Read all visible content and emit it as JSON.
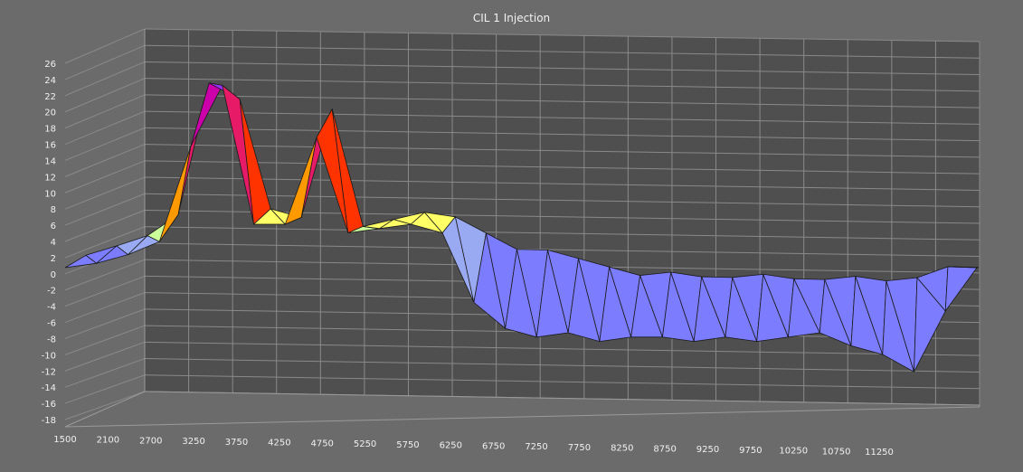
{
  "chart_data": {
    "type": "surface3d",
    "title": "CIL 1 Injection",
    "xlabel": "",
    "ylabel": "",
    "zlabel": "",
    "xlim": [
      1500,
      11250
    ],
    "ylim": [
      -18,
      26
    ],
    "x_ticks": [
      "1500",
      "2100",
      "2700",
      "3250",
      "3750",
      "4250",
      "4750",
      "5250",
      "5750",
      "6250",
      "6750",
      "7250",
      "7750",
      "8250",
      "8750",
      "9250",
      "9750",
      "10250",
      "10750",
      "11250"
    ],
    "y_ticks": [
      "26",
      "24",
      "22",
      "20",
      "18",
      "16",
      "14",
      "12",
      "10",
      "8",
      "6",
      "4",
      "2",
      "0",
      "-2",
      "-4",
      "-6",
      "-8",
      "-10",
      "-12",
      "-14",
      "-16",
      "-18"
    ],
    "grid": true,
    "back_row": [
      -0.5,
      0.8,
      2.2,
      5,
      22,
      20,
      6,
      5,
      19,
      4,
      5,
      6,
      5.5,
      3.5,
      1.5,
      1.5,
      0.5,
      -0.5,
      -1.5,
      -1,
      -1.5,
      -1.5,
      -1,
      -1.5,
      -1.5,
      -1,
      -1.5,
      -1,
      0.5,
      0.5
    ],
    "front_row": [
      0,
      0.5,
      1.5,
      3,
      14,
      21,
      5,
      5,
      15,
      4,
      4.5,
      5,
      4,
      -4,
      -7,
      -8,
      -7.5,
      -8.5,
      -8,
      -8,
      -8.5,
      -8,
      -8.5,
      -8,
      -7.5,
      -9,
      -10,
      -12,
      -5,
      0
    ],
    "colors": [
      "#7c7cff",
      "#9aaaf2",
      "#ccff99",
      "#ffff66",
      "#ff9900",
      "#ff3300",
      "#e61a66",
      "#cc00aa",
      "#9933ff"
    ]
  }
}
